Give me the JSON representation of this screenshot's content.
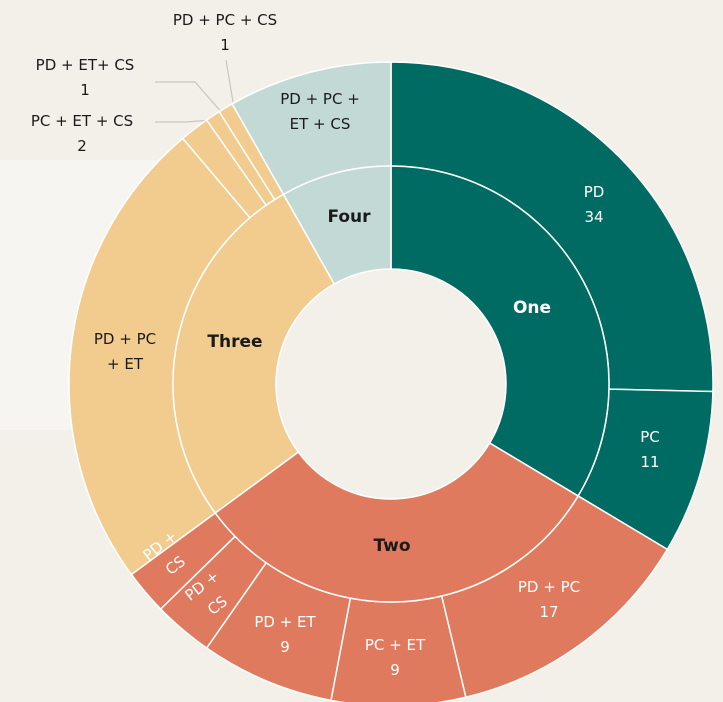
{
  "chart_data": {
    "type": "sunburst",
    "categories": [
      "One",
      "Two",
      "Three",
      "Four"
    ],
    "colors": [
      "#006b63",
      "#e07a5f",
      "#f2cc8f",
      "#c3d9d6"
    ],
    "children": [
      {
        "names": [
          "PD",
          "PC"
        ],
        "values": [
          34,
          11
        ]
      },
      {
        "names": [
          "PD + PC",
          "PC + ET",
          "PD + ET",
          "PD + CS",
          "PD + CS"
        ],
        "values": [
          17,
          9,
          9,
          4,
          3
        ]
      },
      {
        "names": [
          "PD + PC + ET",
          "PC + ET + CS",
          "PD + ET+ CS",
          "PD + PC + CS"
        ],
        "values": [
          32,
          2,
          1,
          1
        ]
      },
      {
        "names": [
          "PD + PC + ET + CS"
        ],
        "values": [
          11
        ]
      }
    ]
  }
}
